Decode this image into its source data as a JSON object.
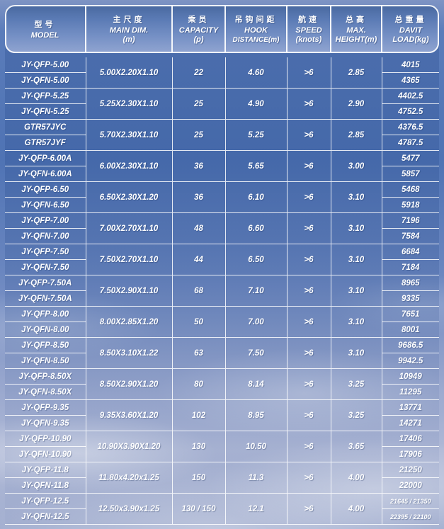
{
  "colors": {
    "header_gradient_top": "#48689f",
    "header_gradient_bottom": "#91a5d1",
    "grid_line": "#ffffff",
    "text": "#ffffff",
    "sky_top": "#4f73b4",
    "sky_bottom": "#a3afd0"
  },
  "header": {
    "columns": [
      {
        "zh": "型号",
        "en": "MODEL",
        "unit": ""
      },
      {
        "zh": "主尺度",
        "en": "MAIN DIM.",
        "unit": "(m)"
      },
      {
        "zh": "乘员",
        "en": "CAPACITY",
        "unit": "(p)"
      },
      {
        "zh": "吊钩间距",
        "en": "HOOK",
        "unit": "DISTANCE(m)"
      },
      {
        "zh": "航速",
        "en": "SPEED",
        "unit": "(knots)"
      },
      {
        "zh": "总高",
        "en": "MAX.",
        "unit": "HEIGHT(m)"
      },
      {
        "zh": "总重量",
        "en": "DAVIT",
        "unit": "LOAD(kg)"
      }
    ]
  },
  "groups": [
    {
      "models": [
        "JY-QFP-5.00",
        "JY-QFN-5.00"
      ],
      "main_dim": "5.00X2.20X1.10",
      "capacity": "22",
      "hook_distance": "4.60",
      "speed": ">6",
      "max_height": "2.85",
      "davit_loads": [
        "4015",
        "4365"
      ]
    },
    {
      "models": [
        "JY-QFP-5.25",
        "JY-QFN-5.25"
      ],
      "main_dim": "5.25X2.30X1.10",
      "capacity": "25",
      "hook_distance": "4.90",
      "speed": ">6",
      "max_height": "2.90",
      "davit_loads": [
        "4402.5",
        "4752.5"
      ]
    },
    {
      "models": [
        "GTR57JYC",
        "GTR57JYF"
      ],
      "main_dim": "5.70X2.30X1.10",
      "capacity": "25",
      "hook_distance": "5.25",
      "speed": ">6",
      "max_height": "2.85",
      "davit_loads": [
        "4376.5",
        "4787.5"
      ]
    },
    {
      "models": [
        "JY-QFP-6.00A",
        "JY-QFN-6.00A"
      ],
      "main_dim": "6.00X2.30X1.10",
      "capacity": "36",
      "hook_distance": "5.65",
      "speed": ">6",
      "max_height": "3.00",
      "davit_loads": [
        "5477",
        "5857"
      ]
    },
    {
      "models": [
        "JY-QFP-6.50",
        "JY-QFN-6.50"
      ],
      "main_dim": "6.50X2.30X1.20",
      "capacity": "36",
      "hook_distance": "6.10",
      "speed": ">6",
      "max_height": "3.10",
      "davit_loads": [
        "5468",
        "5918"
      ]
    },
    {
      "models": [
        "JY-QFP-7.00",
        "JY-QFN-7.00"
      ],
      "main_dim": "7.00X2.70X1.10",
      "capacity": "48",
      "hook_distance": "6.60",
      "speed": ">6",
      "max_height": "3.10",
      "davit_loads": [
        "7196",
        "7584"
      ]
    },
    {
      "models": [
        "JY-QFP-7.50",
        "JY-QFN-7.50"
      ],
      "main_dim": "7.50X2.70X1.10",
      "capacity": "44",
      "hook_distance": "6.50",
      "speed": ">6",
      "max_height": "3.10",
      "davit_loads": [
        "6684",
        "7184"
      ]
    },
    {
      "models": [
        "JY-QFP-7.50A",
        "JY-QFN-7.50A"
      ],
      "main_dim": "7.50X2.90X1.10",
      "capacity": "68",
      "hook_distance": "7.10",
      "speed": ">6",
      "max_height": "3.10",
      "davit_loads": [
        "8965",
        "9335"
      ]
    },
    {
      "models": [
        "JY-QFP-8.00",
        "JY-QFN-8.00"
      ],
      "main_dim": "8.00X2.85X1.20",
      "capacity": "50",
      "hook_distance": "7.00",
      "speed": ">6",
      "max_height": "3.10",
      "davit_loads": [
        "7651",
        "8001"
      ]
    },
    {
      "models": [
        "JY-QFP-8.50",
        "JY-QFN-8.50"
      ],
      "main_dim": "8.50X3.10X1.22",
      "capacity": "63",
      "hook_distance": "7.50",
      "speed": ">6",
      "max_height": "3.10",
      "davit_loads": [
        "9686.5",
        "9942.5"
      ]
    },
    {
      "models": [
        "JY-QFP-8.50X",
        "JY-QFN-8.50X"
      ],
      "main_dim": "8.50X2.90X1.20",
      "capacity": "80",
      "hook_distance": "8.14",
      "speed": ">6",
      "max_height": "3.25",
      "davit_loads": [
        "10949",
        "11295"
      ]
    },
    {
      "models": [
        "JY-QFP-9.35",
        "JY-QFN-9.35"
      ],
      "main_dim": "9.35X3.60X1.20",
      "capacity": "102",
      "hook_distance": "8.95",
      "speed": ">6",
      "max_height": "3.25",
      "davit_loads": [
        "13771",
        "14271"
      ]
    },
    {
      "models": [
        "JY-QFP-10.90",
        "JY-QFN-10.90"
      ],
      "main_dim": "10.90X3.90X1.20",
      "capacity": "130",
      "hook_distance": "10.50",
      "speed": ">6",
      "max_height": "3.65",
      "davit_loads": [
        "17406",
        "17906"
      ]
    },
    {
      "models": [
        "JY-QFP-11.8",
        "JY-QFN-11.8"
      ],
      "main_dim": "11.80x4.20x1.25",
      "capacity": "150",
      "hook_distance": "11.3",
      "speed": ">6",
      "max_height": "4.00",
      "davit_loads": [
        "21250",
        "22000"
      ]
    },
    {
      "models": [
        "JY-QFP-12.5",
        "JY-QFN-12.5"
      ],
      "main_dim": "12.50x3.90x1.25",
      "capacity": "130 / 150",
      "hook_distance": "12.1",
      "speed": ">6",
      "max_height": "4.00",
      "davit_loads": [
        "21645 / 21350",
        "22395 / 22100"
      ],
      "small_load_text": true
    }
  ]
}
